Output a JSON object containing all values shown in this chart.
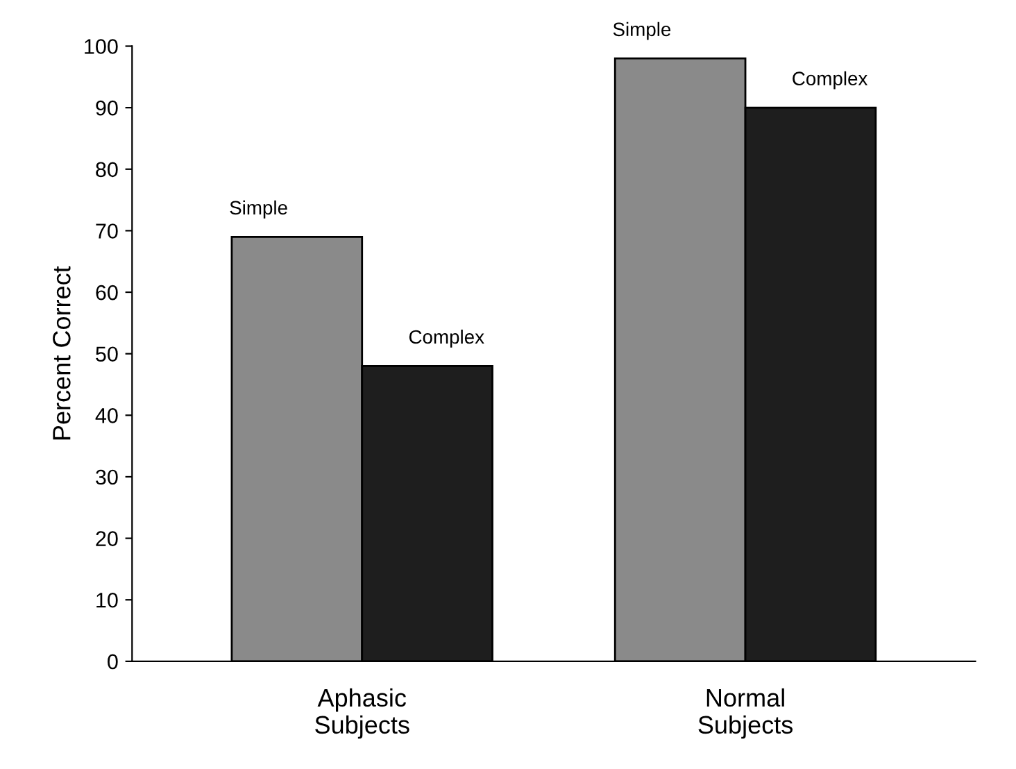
{
  "chart_data": {
    "type": "bar",
    "ylabel": "Percent Correct",
    "categories": [
      "Aphasic\nSubjects",
      "Normal\nSubjects"
    ],
    "series": [
      {
        "name": "Simple",
        "color": "#8a8a8a",
        "values": [
          69,
          98
        ]
      },
      {
        "name": "Complex",
        "color": "#1e1e1e",
        "values": [
          48,
          90
        ]
      }
    ],
    "ylim": [
      0,
      100
    ],
    "yticks": [
      0,
      10,
      20,
      30,
      40,
      50,
      60,
      70,
      80,
      90,
      100
    ],
    "grid": false,
    "legend": false
  }
}
